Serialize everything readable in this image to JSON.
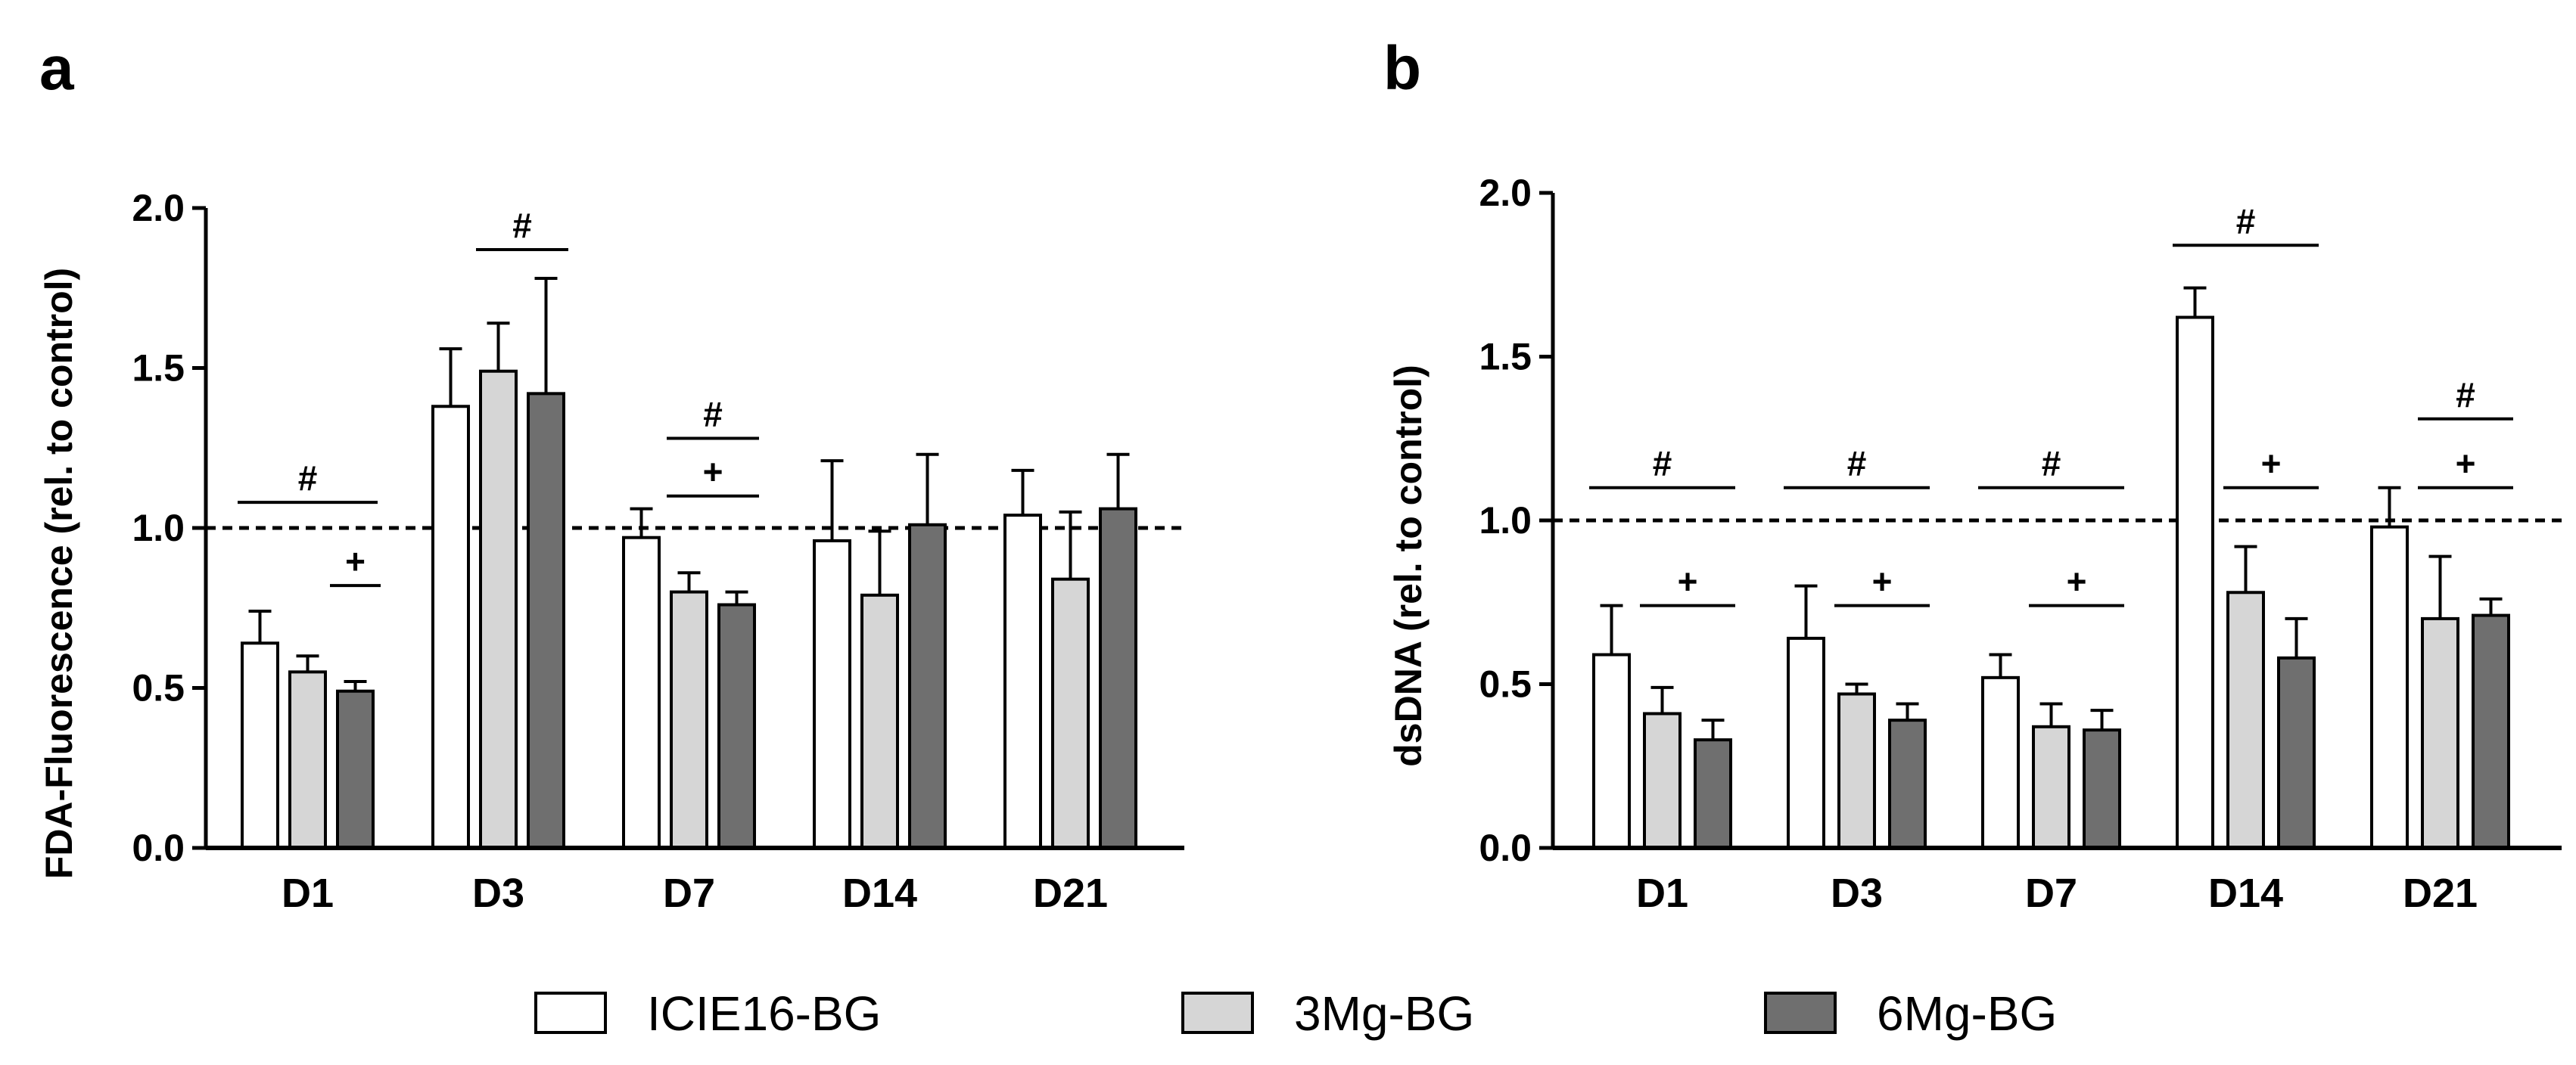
{
  "legend": [
    {
      "label": "ICIE16-BG",
      "color": "#ffffff"
    },
    {
      "label": "3Mg-BG",
      "color": "#d6d6d6"
    },
    {
      "label": "6Mg-BG",
      "color": "#6f6f6f"
    }
  ],
  "chart_data": [
    {
      "panel": "a",
      "type": "bar",
      "title": "",
      "xlabel": "",
      "ylabel": "FDA-Fluorescence (rel. to control)",
      "ylim": [
        0,
        2.0
      ],
      "yticks": [
        "0.0",
        "0.5",
        "1.0",
        "1.5",
        "2.0"
      ],
      "grid": false,
      "reference_line": 1.0,
      "categories": [
        "D1",
        "D3",
        "D7",
        "D14",
        "D21"
      ],
      "series": [
        {
          "name": "ICIE16-BG",
          "values": [
            0.64,
            1.38,
            0.97,
            0.96,
            1.04
          ],
          "errors": [
            0.1,
            0.18,
            0.09,
            0.25,
            0.14
          ]
        },
        {
          "name": "3Mg-BG",
          "values": [
            0.55,
            1.49,
            0.8,
            0.79,
            0.84
          ],
          "errors": [
            0.05,
            0.15,
            0.06,
            0.2,
            0.21
          ]
        },
        {
          "name": "6Mg-BG",
          "values": [
            0.49,
            1.42,
            0.76,
            1.01,
            1.06
          ],
          "errors": [
            0.03,
            0.36,
            0.04,
            0.22,
            0.17
          ]
        }
      ],
      "annotations": [
        {
          "label": "#",
          "category": "D1",
          "from_series": 0,
          "to_series": 2,
          "y": 1.08
        },
        {
          "label": "+",
          "category": "D1",
          "from_series": 2,
          "to_series": 2,
          "y": 0.82
        },
        {
          "label": "#",
          "category": "D3",
          "from_series": 1,
          "to_series": 2,
          "y": 1.87
        },
        {
          "label": "#",
          "category": "D7",
          "from_series": 1,
          "to_series": 2,
          "y": 1.28
        },
        {
          "label": "+",
          "category": "D7",
          "from_series": 1,
          "to_series": 2,
          "y": 1.1
        }
      ]
    },
    {
      "panel": "b",
      "type": "bar",
      "title": "",
      "xlabel": "",
      "ylabel": "dsDNA (rel. to control)",
      "ylim": [
        0,
        2.0
      ],
      "yticks": [
        "0.0",
        "0.5",
        "1.0",
        "1.5",
        "2.0"
      ],
      "grid": false,
      "reference_line": 1.0,
      "categories": [
        "D1",
        "D3",
        "D7",
        "D14",
        "D21"
      ],
      "series": [
        {
          "name": "ICIE16-BG",
          "values": [
            0.59,
            0.64,
            0.52,
            1.62,
            0.98
          ],
          "errors": [
            0.15,
            0.16,
            0.07,
            0.09,
            0.12
          ]
        },
        {
          "name": "3Mg-BG",
          "values": [
            0.41,
            0.47,
            0.37,
            0.78,
            0.7
          ],
          "errors": [
            0.08,
            0.03,
            0.07,
            0.14,
            0.19
          ]
        },
        {
          "name": "6Mg-BG",
          "values": [
            0.33,
            0.39,
            0.36,
            0.58,
            0.71
          ],
          "errors": [
            0.06,
            0.05,
            0.06,
            0.12,
            0.05
          ]
        }
      ],
      "annotations": [
        {
          "label": "#",
          "category": "D1",
          "from_series": 0,
          "to_series": 2,
          "y": 1.1
        },
        {
          "label": "+",
          "category": "D1",
          "from_series": 1,
          "to_series": 2,
          "y": 0.74
        },
        {
          "label": "#",
          "category": "D3",
          "from_series": 0,
          "to_series": 2,
          "y": 1.1
        },
        {
          "label": "+",
          "category": "D3",
          "from_series": 1,
          "to_series": 2,
          "y": 0.74
        },
        {
          "label": "#",
          "category": "D7",
          "from_series": 0,
          "to_series": 2,
          "y": 1.1
        },
        {
          "label": "+",
          "category": "D7",
          "from_series": 1,
          "to_series": 2,
          "y": 0.74
        },
        {
          "label": "#",
          "category": "D14",
          "from_series": 0,
          "to_series": 2,
          "y": 1.84
        },
        {
          "label": "+",
          "category": "D14",
          "from_series": 1,
          "to_series": 2,
          "y": 1.1
        },
        {
          "label": "#",
          "category": "D21",
          "from_series": 1,
          "to_series": 2,
          "y": 1.31
        },
        {
          "label": "+",
          "category": "D21",
          "from_series": 1,
          "to_series": 2,
          "y": 1.1
        }
      ]
    }
  ]
}
